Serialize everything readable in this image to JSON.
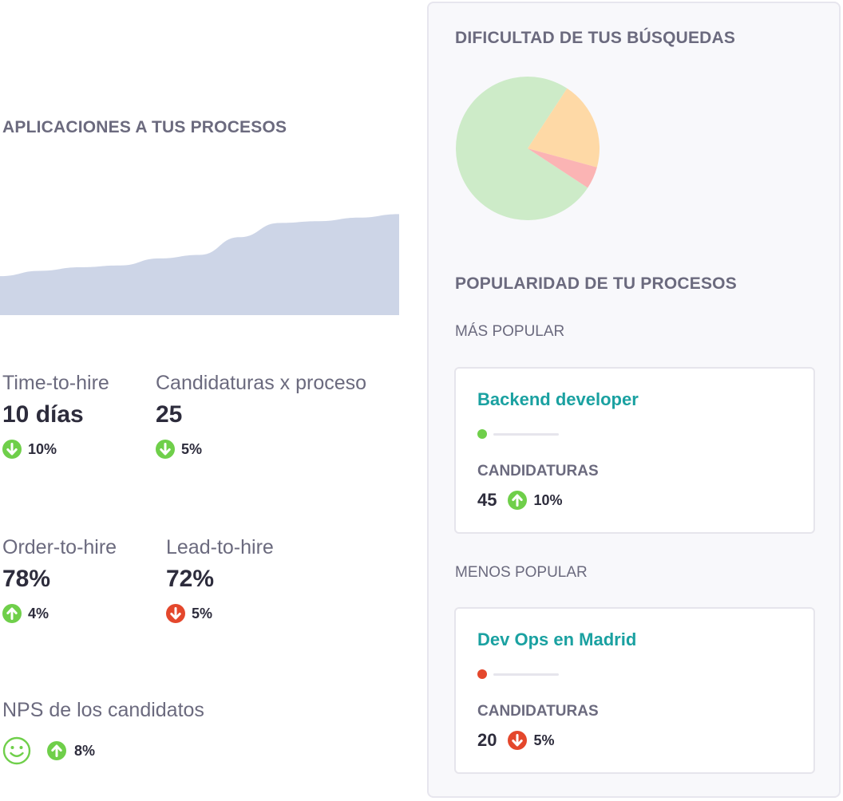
{
  "colors": {
    "up": "#6fcf4a",
    "down": "#e4472c",
    "teal": "#1aa1a1",
    "area": "#cdd5e7"
  },
  "applications": {
    "title": "APLICACIONES A TUS PROCESOS",
    "chart_data": {
      "type": "area",
      "x": [
        0,
        1,
        2,
        3,
        4,
        5,
        6,
        7,
        8,
        9,
        10
      ],
      "values": [
        22,
        25,
        27,
        28,
        32,
        34,
        44,
        52,
        53,
        55,
        57
      ],
      "ylim": [
        0,
        90
      ],
      "grid": false
    }
  },
  "metrics": {
    "time_to_hire": {
      "label": "Time-to-hire",
      "value": "10 días",
      "change": "10%",
      "direction": "down",
      "status": "positive"
    },
    "candidaturas_proceso": {
      "label": "Candidaturas x proceso",
      "value": "25",
      "change": "5%",
      "direction": "down",
      "status": "positive"
    },
    "order_to_hire": {
      "label": "Order-to-hire",
      "value": "78%",
      "change": "4%",
      "direction": "up",
      "status": "positive"
    },
    "lead_to_hire": {
      "label": "Lead-to-hire",
      "value": "72%",
      "change": "5%",
      "direction": "down",
      "status": "negative"
    },
    "nps": {
      "label": "NPS de los candidatos",
      "icon": "smile-icon",
      "change": "8%",
      "direction": "up",
      "status": "positive"
    }
  },
  "difficulty": {
    "title": "DIFICULTAD DE TUS BÚSQUEDAS",
    "chart_data": {
      "type": "pie",
      "slices": [
        {
          "value": 75,
          "color": "#cdebc8"
        },
        {
          "value": 20,
          "color": "#fed9a6"
        },
        {
          "value": 5,
          "color": "#fbb4b4"
        }
      ]
    }
  },
  "popularity": {
    "title": "POPULARIDAD DE TU PROCESOS",
    "most": {
      "label": "MÁS POPULAR",
      "process": "Backend developer",
      "dot_color": "#6fcf4a",
      "candidaturas_label": "CANDIDATURAS",
      "count": "45",
      "change": "10%",
      "direction": "up",
      "status": "positive"
    },
    "least": {
      "label": "MENOS POPULAR",
      "process": "Dev Ops en Madrid",
      "dot_color": "#e4472c",
      "candidaturas_label": "CANDIDATURAS",
      "count": "20",
      "change": "5%",
      "direction": "down",
      "status": "negative"
    }
  }
}
